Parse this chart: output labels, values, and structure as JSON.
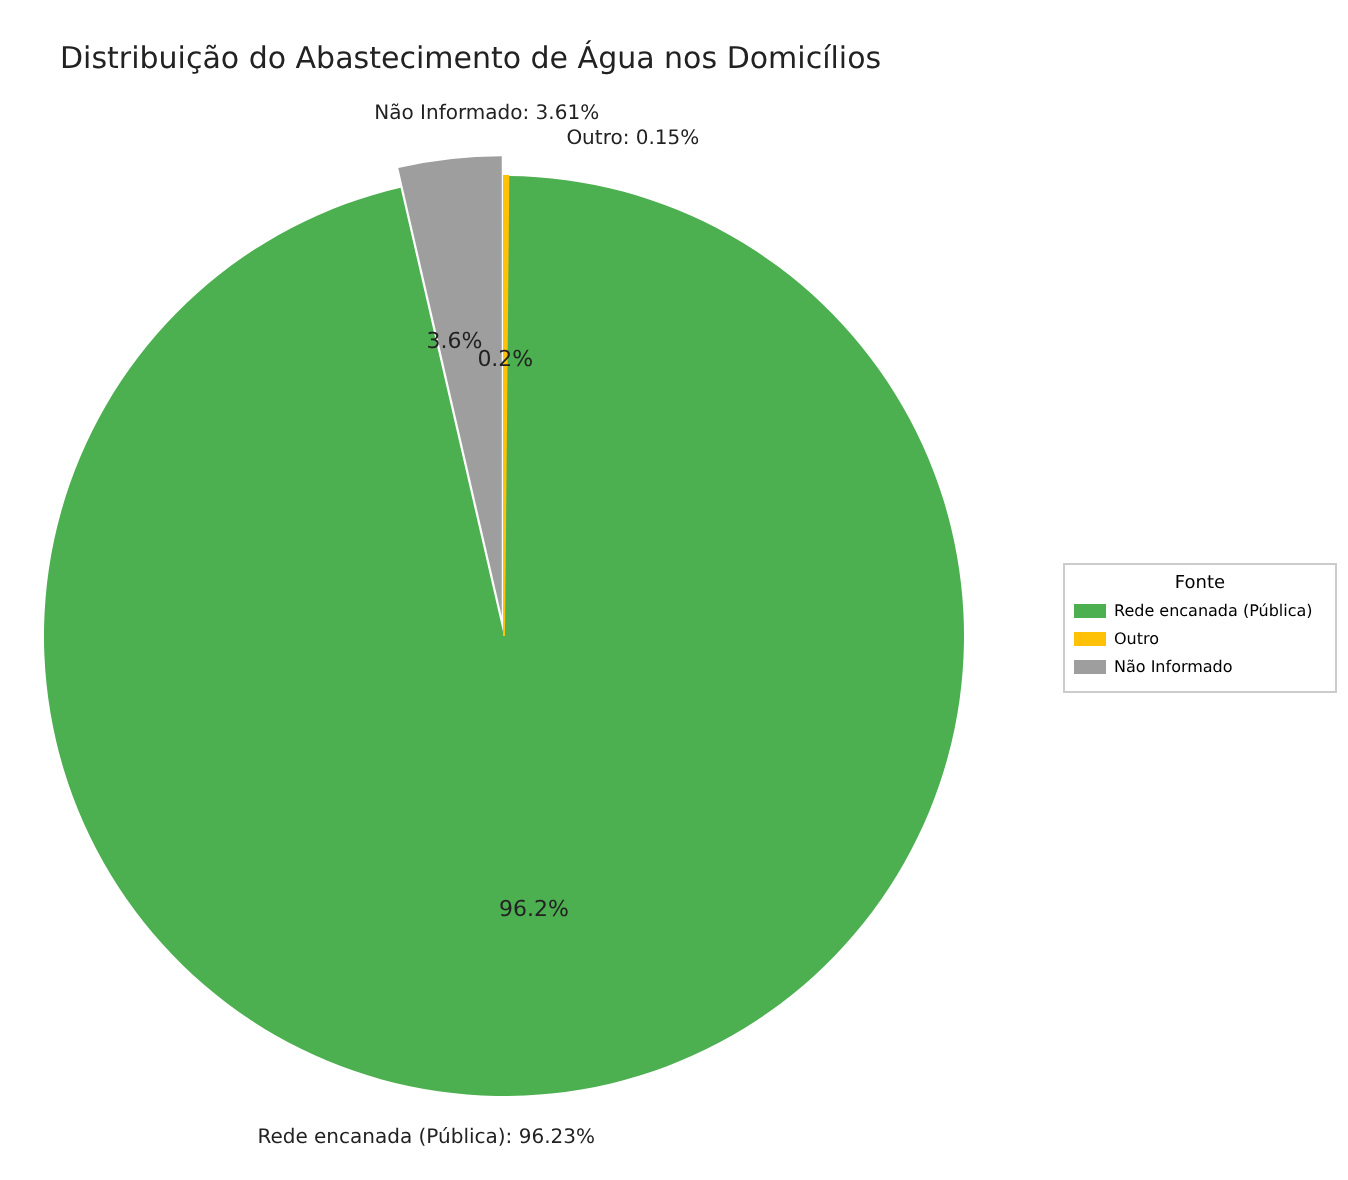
{
  "chart_data": {
    "type": "pie",
    "title": "Distribuição do Abastecimento de Água nos Domicílios",
    "categories": [
      "Rede encanada (Pública)",
      "Outro",
      "Não Informado"
    ],
    "values": [
      96.23,
      0.15,
      3.61
    ],
    "colors": [
      "#4caf50",
      "#ffc107",
      "#9e9e9e"
    ],
    "value_labels": [
      "96.2%",
      "0.2%",
      "3.6%"
    ],
    "annotations": [
      "Rede encanada (Pública): 96.23%",
      "Outro: 0.15%",
      "Não Informado: 3.61%"
    ],
    "legend_title": "Fonte",
    "legend": "right"
  }
}
